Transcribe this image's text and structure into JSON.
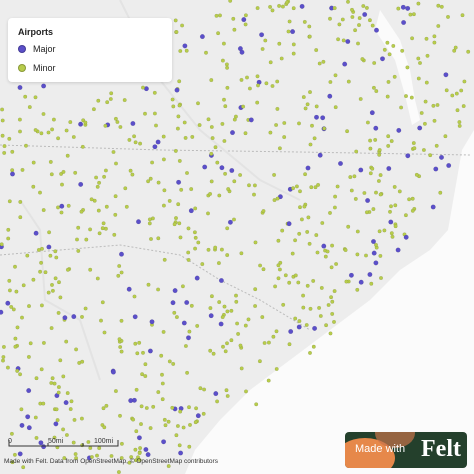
{
  "legend": {
    "title": "Airports",
    "items": [
      {
        "label": "Major",
        "color": "#5b4fc9"
      },
      {
        "label": "Minor",
        "color": "#b7cc4b"
      }
    ]
  },
  "scale": {
    "labels": [
      "0",
      "50mi",
      "100mi"
    ]
  },
  "attribution": "Made with Felt. Data from OpenStreetMap, © OpenStreetMap contributors",
  "badge": {
    "text": "Made with",
    "brand": "Felt"
  }
}
